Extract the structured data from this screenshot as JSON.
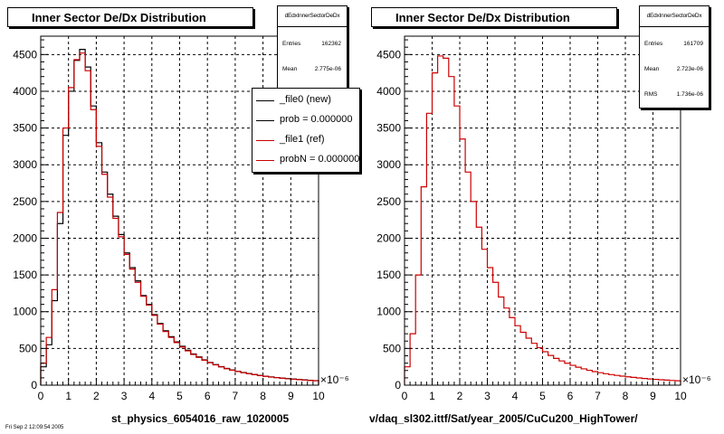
{
  "chart_data": [
    {
      "type": "histogram",
      "title": "Inner Sector De/Dx Distribution",
      "xlabel": "st_physics_6054016_raw_1020005",
      "x_exponent": "×10⁻⁶",
      "xlim": [
        0,
        10
      ],
      "ylim": [
        0,
        4750
      ],
      "grid": true,
      "x_ticks": [
        "0",
        "1",
        "2",
        "3",
        "4",
        "5",
        "6",
        "7",
        "8",
        "9",
        "10"
      ],
      "y_ticks": [
        "0",
        "500",
        "1000",
        "1500",
        "2000",
        "2500",
        "3000",
        "3500",
        "4000",
        "4500"
      ],
      "stats": {
        "name": "dEdxInnerSectorDeDx",
        "rows": [
          {
            "label": "Entries",
            "value": "162362"
          },
          {
            "label": "Mean",
            "value": "2.775e-06"
          }
        ]
      },
      "legend": [
        {
          "label": "_file0 (new)",
          "color": "#000000"
        },
        {
          "label": "prob = 0.000000",
          "color": "#000000"
        },
        {
          "label": "_file1 (ref)",
          "color": "#cc0000"
        },
        {
          "label": "probN = 0.000000",
          "color": "#cc0000"
        }
      ],
      "series": [
        {
          "name": "_file0 (new)",
          "color": "#000000",
          "x": [
            0.1,
            0.3,
            0.5,
            0.7,
            0.9,
            1.1,
            1.3,
            1.5,
            1.7,
            1.9,
            2.1,
            2.3,
            2.5,
            2.7,
            2.9,
            3.1,
            3.3,
            3.5,
            3.7,
            3.9,
            4.1,
            4.3,
            4.5,
            4.7,
            4.9,
            5.1,
            5.3,
            5.5,
            5.7,
            5.9,
            6.1,
            6.3,
            6.5,
            6.7,
            6.9,
            7.1,
            7.3,
            7.5,
            7.7,
            7.9,
            8.1,
            8.3,
            8.5,
            8.7,
            8.9,
            9.1,
            9.3,
            9.5,
            9.7,
            9.9
          ],
          "y": [
            250,
            550,
            1150,
            2200,
            3400,
            4000,
            4420,
            4570,
            4330,
            3800,
            3300,
            2900,
            2600,
            2300,
            2050,
            1800,
            1600,
            1420,
            1220,
            1100,
            960,
            840,
            740,
            660,
            590,
            530,
            475,
            425,
            385,
            345,
            310,
            280,
            252,
            228,
            206,
            188,
            172,
            158,
            145,
            133,
            122,
            112,
            104,
            96,
            89,
            83,
            77,
            72,
            67,
            62
          ]
        },
        {
          "name": "_file1 (ref)",
          "color": "#cc0000",
          "x": [
            0.1,
            0.3,
            0.5,
            0.7,
            0.9,
            1.1,
            1.3,
            1.5,
            1.7,
            1.9,
            2.1,
            2.3,
            2.5,
            2.7,
            2.9,
            3.1,
            3.3,
            3.5,
            3.7,
            3.9,
            4.1,
            4.3,
            4.5,
            4.7,
            4.9,
            5.1,
            5.3,
            5.5,
            5.7,
            5.9,
            6.1,
            6.3,
            6.5,
            6.7,
            6.9,
            7.1,
            7.3,
            7.5,
            7.7,
            7.9,
            8.1,
            8.3,
            8.5,
            8.7,
            8.9,
            9.1,
            9.3,
            9.5,
            9.7,
            9.9
          ],
          "y": [
            300,
            650,
            1300,
            2350,
            3500,
            4050,
            4430,
            4520,
            4280,
            3750,
            3250,
            2870,
            2560,
            2270,
            2020,
            1780,
            1580,
            1400,
            1210,
            1090,
            950,
            830,
            730,
            650,
            580,
            520,
            468,
            418,
            378,
            340,
            306,
            276,
            249,
            225,
            204,
            186,
            170,
            156,
            143,
            131,
            120,
            110,
            102,
            94,
            87,
            81,
            75,
            70,
            65,
            60
          ]
        }
      ]
    },
    {
      "type": "histogram",
      "title": "Inner Sector De/Dx Distribution",
      "xlabel": "v/daq_sl302.ittf/Sat/year_2005/CuCu200_HighTower/",
      "x_exponent": "×10⁻⁶",
      "xlim": [
        0,
        10
      ],
      "ylim": [
        0,
        4750
      ],
      "grid": true,
      "x_ticks": [
        "0",
        "1",
        "2",
        "3",
        "4",
        "5",
        "6",
        "7",
        "8",
        "9",
        "10"
      ],
      "y_ticks": [
        "0",
        "500",
        "1000",
        "1500",
        "2000",
        "2500",
        "3000",
        "3500",
        "4000",
        "4500"
      ],
      "stats": {
        "name": "dEdxInnerSectorDeDx",
        "rows": [
          {
            "label": "Entries",
            "value": "161709"
          },
          {
            "label": "Mean",
            "value": "2.723e-06"
          },
          {
            "label": "RMS",
            "value": "1.736e-06"
          }
        ]
      },
      "series": [
        {
          "name": "",
          "color": "#cc0000",
          "x": [
            0.1,
            0.3,
            0.5,
            0.7,
            0.9,
            1.1,
            1.3,
            1.5,
            1.7,
            1.9,
            2.1,
            2.3,
            2.5,
            2.7,
            2.9,
            3.1,
            3.3,
            3.5,
            3.7,
            3.9,
            4.1,
            4.3,
            4.5,
            4.7,
            4.9,
            5.1,
            5.3,
            5.5,
            5.7,
            5.9,
            6.1,
            6.3,
            6.5,
            6.7,
            6.9,
            7.1,
            7.3,
            7.5,
            7.7,
            7.9,
            8.1,
            8.3,
            8.5,
            8.7,
            8.9,
            9.1,
            9.3,
            9.5,
            9.7,
            9.9
          ],
          "y": [
            250,
            700,
            1500,
            2700,
            3700,
            4250,
            4480,
            4450,
            4200,
            3800,
            3350,
            2900,
            2500,
            2150,
            1850,
            1600,
            1400,
            1200,
            1050,
            920,
            810,
            720,
            640,
            570,
            510,
            455,
            405,
            365,
            330,
            298,
            270,
            245,
            222,
            202,
            185,
            170,
            156,
            144,
            133,
            123,
            114,
            106,
            98,
            91,
            85,
            79,
            74,
            69,
            64,
            60
          ]
        }
      ]
    }
  ],
  "footer_text": "Fri Sep  2 12:09:54 2005"
}
